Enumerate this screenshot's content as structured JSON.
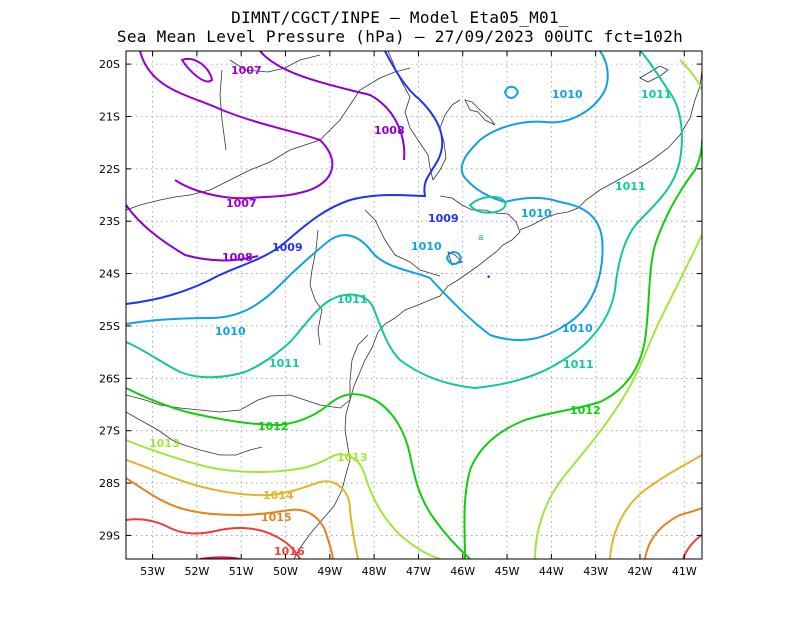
{
  "title": {
    "line1": "DIMNT/CGCT/INPE –  Model Eta05_M01_",
    "line2": "Sea Mean Level Pressure (hPa) – 27/09/2023 00UTC fct=102h"
  },
  "map": {
    "lon_range": [
      -53.6,
      -40.6
    ],
    "lat_range": [
      -29.45,
      -19.75
    ],
    "lat_ticks": [
      "20S",
      "21S",
      "22S",
      "23S",
      "24S",
      "25S",
      "26S",
      "27S",
      "28S",
      "29S"
    ],
    "lon_ticks": [
      "53W",
      "52W",
      "51W",
      "50W",
      "49W",
      "48W",
      "47W",
      "46W",
      "45W",
      "44W",
      "43W",
      "42W",
      "41W"
    ],
    "gridlines": "dotted"
  },
  "contours": [
    {
      "value": "1007",
      "color": "#9900cc",
      "labels": [
        "1007",
        "1007"
      ]
    },
    {
      "value": "1008",
      "color": "#8a00cc",
      "labels": [
        "1008",
        "1008"
      ]
    },
    {
      "value": "1009",
      "color": "#2233ee",
      "labels": [
        "1009",
        "1009"
      ]
    },
    {
      "value": "1010",
      "color": "#11a0e6",
      "labels": [
        "1010",
        "1010",
        "1010",
        "1010",
        "1010"
      ]
    },
    {
      "value": "1011",
      "color": "#10c8a0",
      "labels": [
        "1011",
        "1011",
        "1011",
        "1011",
        "1011"
      ]
    },
    {
      "value": "1012",
      "color": "#11cc11",
      "labels": [
        "1012",
        "1012"
      ]
    },
    {
      "value": "1013",
      "color": "#a0e63c",
      "labels": [
        "1013",
        "1013"
      ]
    },
    {
      "value": "1014",
      "color": "#e6b428",
      "labels": [
        "1014"
      ]
    },
    {
      "value": "1015",
      "color": "#e6821e",
      "labels": [
        "1015"
      ]
    },
    {
      "value": "1016",
      "color": "#f03c3c",
      "labels": [
        "1016"
      ]
    }
  ]
}
